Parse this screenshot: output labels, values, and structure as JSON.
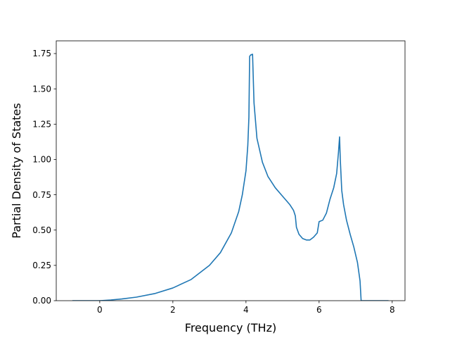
{
  "chart_data": {
    "type": "line",
    "title": "",
    "xlabel": "Frequency (THz)",
    "ylabel": "Partial Density of States",
    "xlim": [
      -1.19,
      8.35
    ],
    "ylim": [
      0.0,
      1.84
    ],
    "xticks": [
      0,
      2,
      4,
      6,
      8
    ],
    "xtick_labels": [
      "0",
      "2",
      "4",
      "6",
      "8"
    ],
    "yticks": [
      0.0,
      0.25,
      0.5,
      0.75,
      1.0,
      1.25,
      1.5,
      1.75
    ],
    "ytick_labels": [
      "0.00",
      "0.25",
      "0.50",
      "0.75",
      "1.00",
      "1.25",
      "1.50",
      "1.75"
    ],
    "grid": false,
    "legend": "none",
    "series": [
      {
        "color": "#1f77b4",
        "x": [
          -0.75,
          0.0,
          0.3,
          0.6,
          1.0,
          1.5,
          2.0,
          2.5,
          3.0,
          3.3,
          3.6,
          3.8,
          3.9,
          4.0,
          4.05,
          4.08,
          4.1,
          4.13,
          4.18,
          4.22,
          4.3,
          4.45,
          4.6,
          4.8,
          5.0,
          5.2,
          5.3,
          5.35,
          5.38,
          5.45,
          5.55,
          5.65,
          5.75,
          5.85,
          5.95,
          6.0,
          6.1,
          6.2,
          6.3,
          6.4,
          6.48,
          6.53,
          6.56,
          6.58,
          6.62,
          6.67,
          6.75,
          6.85,
          6.95,
          7.05,
          7.12,
          7.15,
          7.2,
          7.4,
          7.6,
          7.9
        ],
        "y": [
          0.0,
          0.0,
          0.005,
          0.012,
          0.025,
          0.05,
          0.09,
          0.15,
          0.25,
          0.34,
          0.48,
          0.63,
          0.75,
          0.92,
          1.1,
          1.3,
          1.73,
          1.74,
          1.745,
          1.4,
          1.15,
          0.98,
          0.88,
          0.8,
          0.74,
          0.68,
          0.64,
          0.6,
          0.52,
          0.47,
          0.44,
          0.43,
          0.43,
          0.45,
          0.48,
          0.56,
          0.57,
          0.62,
          0.72,
          0.8,
          0.9,
          1.05,
          1.16,
          1.0,
          0.78,
          0.68,
          0.57,
          0.47,
          0.38,
          0.27,
          0.14,
          0.0,
          0.0,
          0.0,
          0.0,
          0.0
        ]
      }
    ]
  }
}
